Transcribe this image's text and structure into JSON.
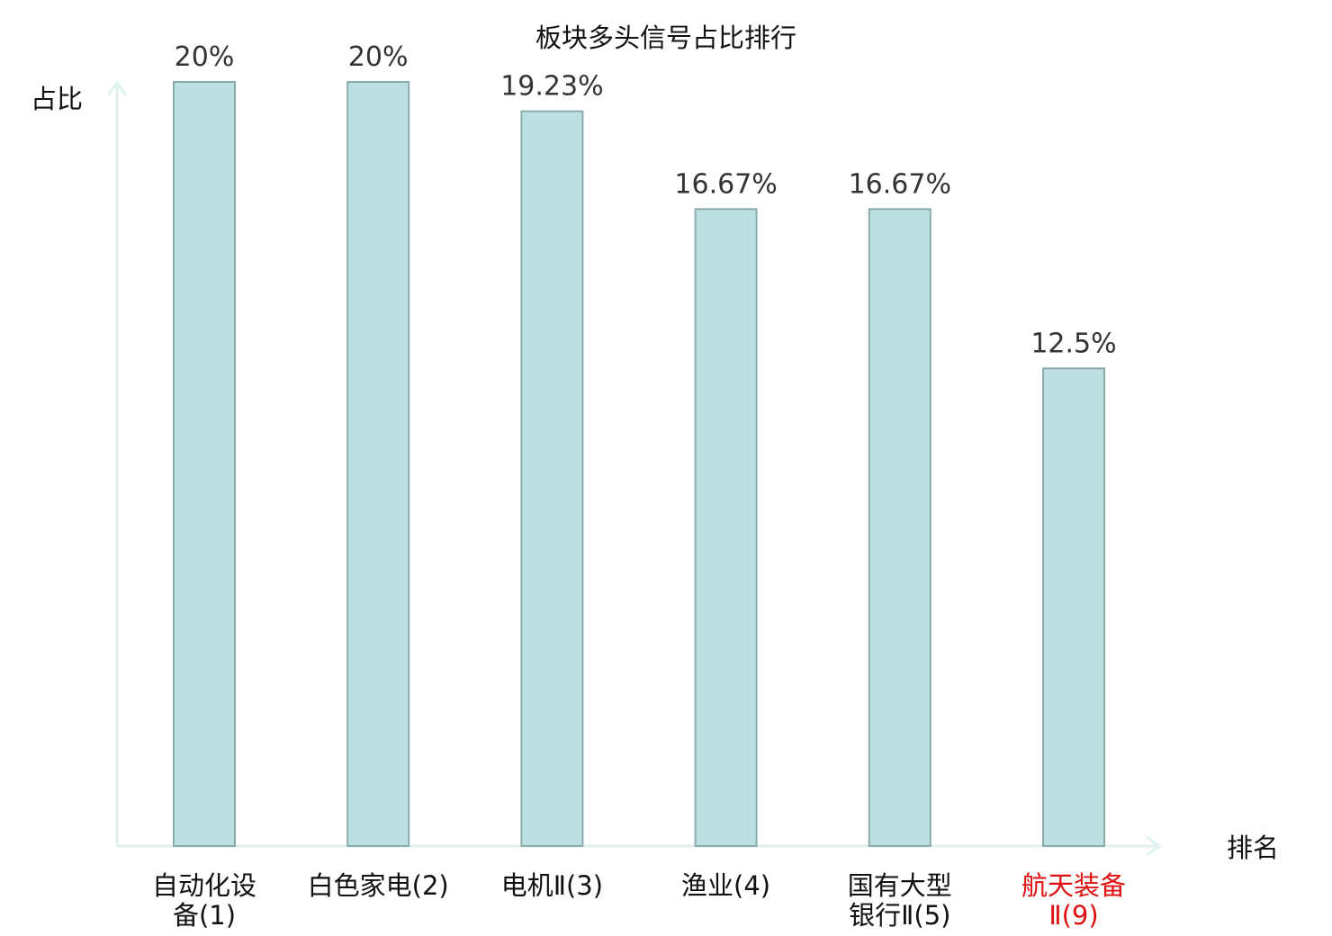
{
  "chart_data": {
    "type": "bar",
    "title": "板块多头信号占比排行",
    "xlabel": "排名",
    "ylabel": "占比",
    "ylim": [
      0,
      20
    ],
    "grid": false,
    "categories": [
      {
        "lines": [
          "自动化设",
          "备(1)"
        ],
        "highlight": false
      },
      {
        "lines": [
          "白色家电(2)"
        ],
        "highlight": false
      },
      {
        "lines": [
          "电机Ⅱ(3)"
        ],
        "highlight": false
      },
      {
        "lines": [
          "渔业(4)"
        ],
        "highlight": false
      },
      {
        "lines": [
          "国有大型",
          "银行Ⅱ(5)"
        ],
        "highlight": false
      },
      {
        "lines": [
          "航天装备",
          "Ⅱ(9)"
        ],
        "highlight": true
      }
    ],
    "values": [
      20,
      20,
      19.23,
      16.67,
      16.67,
      12.5
    ],
    "value_labels": [
      "20%",
      "20%",
      "19.23%",
      "16.67%",
      "16.67%",
      "12.5%"
    ],
    "colors": {
      "bar_fill": "#bde1e3",
      "bar_stroke": "#8aabac",
      "axis": "#dff2ef",
      "label_normal": "#111111",
      "label_highlight": "#e01010"
    }
  }
}
